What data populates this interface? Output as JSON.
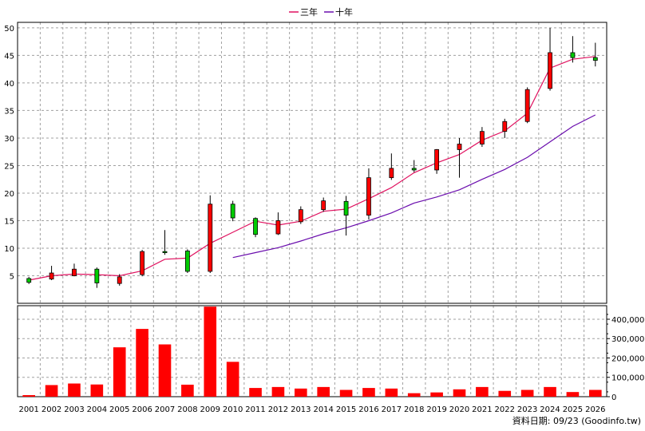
{
  "chart_data": {
    "type": "candlestick",
    "legend": [
      "三年",
      "十年"
    ],
    "legend_placement": "top-center",
    "grid": true,
    "x": [
      "2001",
      "2002",
      "2003",
      "2004",
      "2005",
      "2006",
      "2007",
      "2008",
      "2009",
      "2010",
      "2011",
      "2012",
      "2013",
      "2014",
      "2015",
      "2016",
      "2017",
      "2018",
      "2019",
      "2020",
      "2021",
      "2022",
      "2023",
      "2024",
      "2025",
      "2026"
    ],
    "price_axis": {
      "ylim": [
        0,
        51
      ],
      "ticks": [
        5,
        10,
        15,
        20,
        25,
        30,
        35,
        40,
        45,
        50
      ]
    },
    "volume_axis": {
      "ylim": [
        0,
        470000
      ],
      "ticks": [
        0,
        100000,
        200000,
        300000,
        400000
      ],
      "tick_labels": [
        "0",
        "100,000",
        "200,000",
        "300,000",
        "400,000"
      ]
    },
    "candles": [
      {
        "year": "2001",
        "open": 4.5,
        "high": 4.8,
        "low": 3.5,
        "close": 3.8
      },
      {
        "year": "2002",
        "open": 4.4,
        "high": 6.8,
        "low": 4.2,
        "close": 5.5
      },
      {
        "year": "2003",
        "open": 5.0,
        "high": 7.2,
        "low": 4.9,
        "close": 6.2
      },
      {
        "year": "2004",
        "open": 6.2,
        "high": 6.5,
        "low": 2.8,
        "close": 3.7
      },
      {
        "year": "2005",
        "open": 3.6,
        "high": 5.3,
        "low": 3.2,
        "close": 4.8
      },
      {
        "year": "2006",
        "open": 5.2,
        "high": 9.7,
        "low": 4.9,
        "close": 9.4
      },
      {
        "year": "2007",
        "open": 9.4,
        "high": 13.3,
        "low": 8.8,
        "close": 9.2
      },
      {
        "year": "2008",
        "open": 9.5,
        "high": 9.8,
        "low": 5.5,
        "close": 5.8
      },
      {
        "year": "2009",
        "open": 5.8,
        "high": 19.6,
        "low": 5.5,
        "close": 18.0
      },
      {
        "year": "2010",
        "open": 18.0,
        "high": 18.6,
        "low": 14.9,
        "close": 15.5
      },
      {
        "year": "2011",
        "open": 15.4,
        "high": 15.6,
        "low": 12.0,
        "close": 12.5
      },
      {
        "year": "2012",
        "open": 12.6,
        "high": 16.5,
        "low": 12.4,
        "close": 15.0
      },
      {
        "year": "2013",
        "open": 14.8,
        "high": 17.6,
        "low": 14.4,
        "close": 17.0
      },
      {
        "year": "2014",
        "open": 17.0,
        "high": 19.2,
        "low": 16.6,
        "close": 18.6
      },
      {
        "year": "2015",
        "open": 18.5,
        "high": 19.5,
        "low": 12.3,
        "close": 16.0
      },
      {
        "year": "2016",
        "open": 16.0,
        "high": 24.5,
        "low": 15.2,
        "close": 22.8
      },
      {
        "year": "2017",
        "open": 22.8,
        "high": 27.2,
        "low": 22.4,
        "close": 24.5
      },
      {
        "year": "2018",
        "open": 24.5,
        "high": 26.0,
        "low": 23.8,
        "close": 24.2
      },
      {
        "year": "2019",
        "open": 24.2,
        "high": 28.0,
        "low": 23.5,
        "close": 27.9
      },
      {
        "year": "2020",
        "open": 27.9,
        "high": 30.0,
        "low": 22.8,
        "close": 28.9
      },
      {
        "year": "2021",
        "open": 28.9,
        "high": 32.0,
        "low": 28.4,
        "close": 31.2
      },
      {
        "year": "2022",
        "open": 31.2,
        "high": 33.5,
        "low": 30.0,
        "close": 33.0
      },
      {
        "year": "2023",
        "open": 33.0,
        "high": 39.2,
        "low": 32.7,
        "close": 38.8
      },
      {
        "year": "2024",
        "open": 39.0,
        "high": 50.0,
        "low": 38.6,
        "close": 45.5
      },
      {
        "year": "2025",
        "open": 45.5,
        "high": 48.5,
        "low": 43.7,
        "close": 44.6
      },
      {
        "year": "2026",
        "open": 44.6,
        "high": 47.3,
        "low": 43.0,
        "close": 44.1
      }
    ],
    "series": [
      {
        "name": "三年",
        "color": "#e0115f",
        "values": [
          4.2,
          5.0,
          5.3,
          5.2,
          5.0,
          5.9,
          8.0,
          8.2,
          10.9,
          12.9,
          14.9,
          14.2,
          14.9,
          16.7,
          17.1,
          19.0,
          21.0,
          23.7,
          25.5,
          27.0,
          29.6,
          31.3,
          34.5,
          42.7,
          44.3,
          44.8
        ]
      },
      {
        "name": "十年",
        "color": "#6a0dad",
        "values": [
          null,
          null,
          null,
          null,
          null,
          null,
          null,
          null,
          null,
          8.3,
          9.2,
          10.1,
          11.3,
          12.6,
          13.7,
          15.0,
          16.4,
          18.2,
          19.3,
          20.6,
          22.5,
          24.3,
          26.5,
          29.3,
          32.1,
          34.2
        ]
      }
    ],
    "volume": [
      8000,
      60000,
      68000,
      63000,
      255000,
      350000,
      270000,
      62000,
      465000,
      180000,
      45000,
      50000,
      42000,
      50000,
      35000,
      45000,
      42000,
      18000,
      22000,
      38000,
      50000,
      30000,
      35000,
      50000,
      24000,
      35000
    ],
    "credit": "資料日期: 09/23   (Goodinfo.tw)"
  }
}
